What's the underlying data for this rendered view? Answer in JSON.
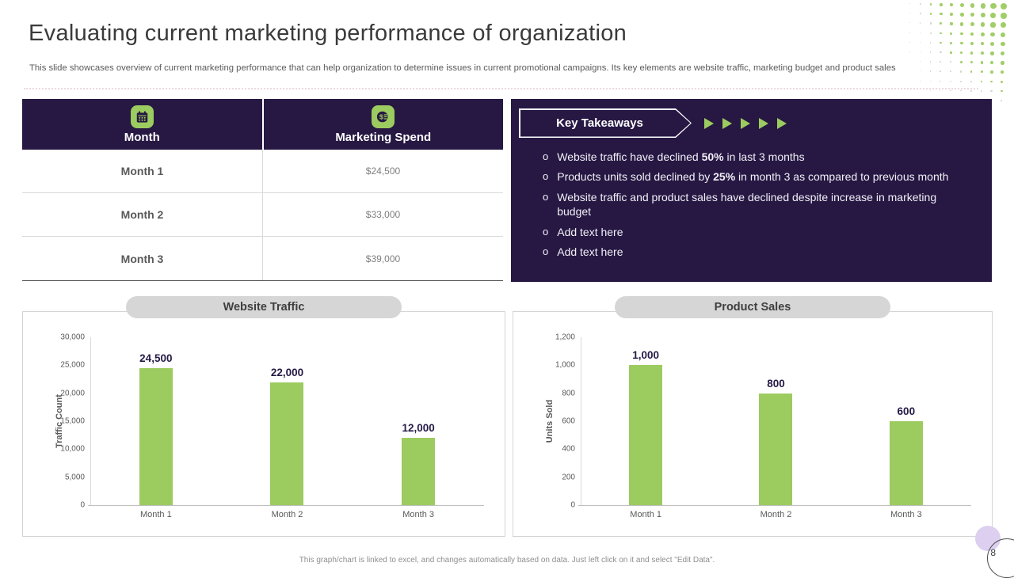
{
  "slide": {
    "title": "Evaluating current marketing performance of organization",
    "subtitle": "This slide showcases overview of current marketing performance that can help organization to determine issues in current promotional campaigns. Its key elements are website traffic, marketing budget and product sales",
    "footer_note": "This graph/chart is linked to excel, and changes automatically based on data. Just left click on it and select \"Edit Data\".",
    "page_number": "8"
  },
  "colors": {
    "accent_green": "#9ccb5f",
    "dark_purple": "#261843",
    "pill_gray": "#d6d6d6",
    "label_purple": "#241a45"
  },
  "table": {
    "columns": [
      {
        "label": "Month",
        "icon": "calendar-icon"
      },
      {
        "label": "Marketing Spend",
        "icon": "money-icon"
      }
    ],
    "rows": [
      {
        "month": "Month 1",
        "spend": "$24,500"
      },
      {
        "month": "Month 2",
        "spend": "$33,000"
      },
      {
        "month": "Month 3",
        "spend": "$39,000"
      }
    ]
  },
  "key_takeaways": {
    "title": "Key Takeaways",
    "bullets": [
      {
        "pre": "Website traffic have declined ",
        "bold": "50%",
        "post": " in last 3 months"
      },
      {
        "pre": "Products units sold declined by ",
        "bold": "25%",
        "post": " in month 3 as compared to previous month"
      },
      {
        "pre": "Website traffic and product sales have declined despite increase in marketing budget",
        "bold": "",
        "post": ""
      },
      {
        "pre": "Add text here",
        "bold": "",
        "post": ""
      },
      {
        "pre": "Add text here",
        "bold": "",
        "post": ""
      }
    ]
  },
  "chart_data": [
    {
      "type": "bar",
      "title": "Website Traffic",
      "categories": [
        "Month 1",
        "Month 2",
        "Month 3"
      ],
      "values": [
        24500,
        22000,
        12000
      ],
      "value_labels": [
        "24,500",
        "22,000",
        "12,000"
      ],
      "xlabel": "",
      "ylabel": "Traffic Count",
      "ylim": [
        0,
        30000
      ],
      "yticks": [
        "30,000",
        "25,000",
        "20,000",
        "15,000",
        "10,000",
        "5,000",
        "0"
      ],
      "grid": false,
      "legend": false,
      "bar_color": "#9ccb5f"
    },
    {
      "type": "bar",
      "title": "Product Sales",
      "categories": [
        "Month 1",
        "Month 2",
        "Month 3"
      ],
      "values": [
        1000,
        800,
        600
      ],
      "value_labels": [
        "1,000",
        "800",
        "600"
      ],
      "xlabel": "",
      "ylabel": "Units Sold",
      "ylim": [
        0,
        1200
      ],
      "yticks": [
        "1,200",
        "1,000",
        "800",
        "600",
        "400",
        "200",
        "0"
      ],
      "grid": false,
      "legend": false,
      "bar_color": "#9ccb5f"
    }
  ]
}
